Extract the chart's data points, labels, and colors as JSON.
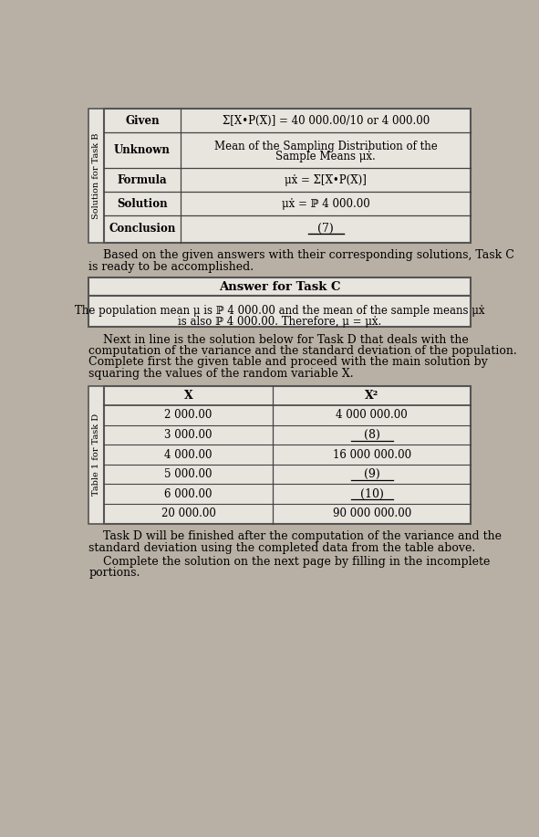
{
  "bg_color": "#b8b0a4",
  "table_bg": "#e8e4de",
  "white": "#ffffff",
  "border_color": "#555555",
  "table1_side_label": "Solution for Task B",
  "table1_rows": [
    [
      "Given",
      "Σ[X•P(X̅)] = 40 000.00/10 or 4 000.00"
    ],
    [
      "Unknown",
      "Mean of the Sampling Distribution of the\nSample Means μẋ."
    ],
    [
      "Formula",
      "μẋ = Σ[X̅•P(X̅)]"
    ],
    [
      "Solution",
      "μẋ = ℙ 4 000.00"
    ],
    [
      "Conclusion",
      "(7)"
    ]
  ],
  "para1_line1": "    Based on the given answers with their corresponding solutions, Task C",
  "para1_line2": "is ready to be accomplished.",
  "answer_box_title": "Answer for Task C",
  "answer_box_text_line1": "The population mean μ is ℙ 4 000.00 and the mean of the sample means μẋ",
  "answer_box_text_line2": "is also ℙ 4 000.00. Therefore, μ = μẋ.",
  "para2_lines": [
    "    Next in line is the solution below for Task D that deals with the",
    "computation of the variance and the standard deviation of the population.",
    "Complete first the given table and proceed with the main solution by",
    "squaring the values of the random variable X."
  ],
  "table2_side_label": "Table 1 for Task D",
  "table2_headers": [
    "X",
    "X²"
  ],
  "table2_rows": [
    [
      "2 000.00",
      "4 000 000.00",
      false
    ],
    [
      "3 000.00",
      "(8)",
      true
    ],
    [
      "4 000.00",
      "16 000 000.00",
      false
    ],
    [
      "5 000.00",
      "(9)",
      true
    ],
    [
      "6 000.00",
      "(10)",
      true
    ],
    [
      "20 000.00",
      "90 000 000.00",
      false
    ]
  ],
  "para3_lines": [
    "    Task D will be finished after the computation of the variance and the",
    "standard deviation using the completed data from the table above."
  ],
  "para4_lines": [
    "    Complete the solution on the next page by filling in the incomplete",
    "portions."
  ]
}
